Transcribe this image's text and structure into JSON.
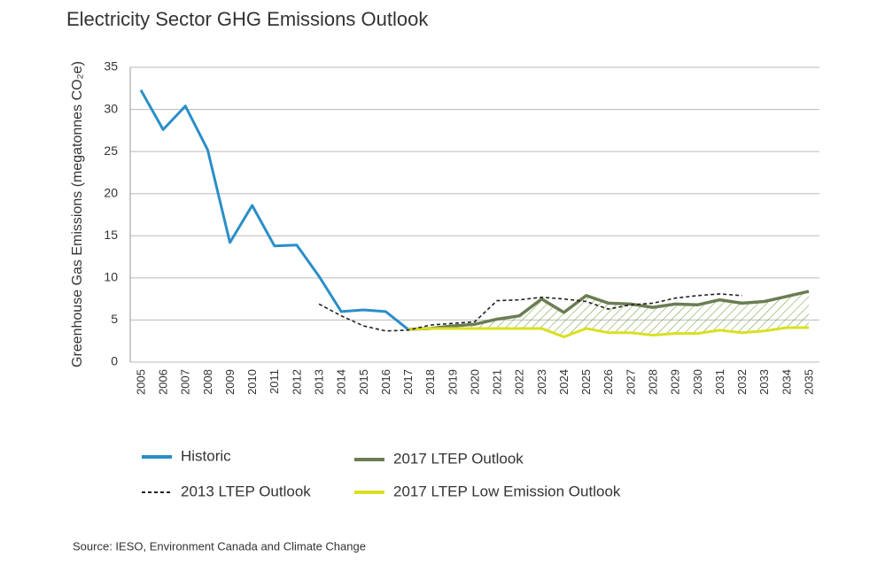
{
  "chart_data": {
    "type": "line",
    "title": "Electricity Sector GHG Emissions Outlook",
    "y_label": "Greenhouse Gas Emissions (megatonnes CO₂e)",
    "source": "Source: IESO, Environment Canada and Climate Change",
    "categories": [
      "2005",
      "2006",
      "2007",
      "2008",
      "2009",
      "2010",
      "2011",
      "2012",
      "2013",
      "2014",
      "2015",
      "2016",
      "2017",
      "2018",
      "2019",
      "2020",
      "2021",
      "2022",
      "2023",
      "2024",
      "2025",
      "2026",
      "2027",
      "2028",
      "2029",
      "2030",
      "2031",
      "2032",
      "2033",
      "2034",
      "2035"
    ],
    "ylim": [
      0,
      35
    ],
    "yticks": [
      0,
      5,
      10,
      15,
      20,
      25,
      30,
      35
    ],
    "grid": true,
    "series": [
      {
        "name": "Historic",
        "color": "#2a8ec9",
        "dashed": false,
        "values": [
          32.3,
          27.6,
          30.4,
          25.2,
          14.2,
          18.6,
          13.8,
          13.9,
          10.2,
          6.0,
          6.2,
          6.0,
          3.9,
          null,
          null,
          null,
          null,
          null,
          null,
          null,
          null,
          null,
          null,
          null,
          null,
          null,
          null,
          null,
          null,
          null,
          null
        ]
      },
      {
        "name": "2013 LTEP Outlook",
        "color": "#222222",
        "dashed": true,
        "values": [
          null,
          null,
          null,
          null,
          null,
          null,
          null,
          null,
          6.9,
          5.5,
          4.3,
          3.7,
          3.8,
          4.4,
          4.6,
          4.8,
          7.3,
          7.4,
          7.7,
          7.5,
          7.2,
          6.3,
          6.8,
          7.0,
          7.6,
          7.9,
          8.1,
          7.9,
          null,
          null,
          null
        ]
      },
      {
        "name": "2017 LTEP Outlook",
        "color": "#6b7d53",
        "dashed": false,
        "values": [
          null,
          null,
          null,
          null,
          null,
          null,
          null,
          null,
          null,
          null,
          null,
          null,
          3.9,
          4.0,
          4.3,
          4.5,
          5.1,
          5.5,
          7.5,
          5.9,
          7.9,
          7.0,
          6.9,
          6.5,
          6.9,
          6.8,
          7.4,
          7.0,
          7.2,
          7.8,
          8.4
        ]
      },
      {
        "name": "2017 LTEP Low Emission Outlook",
        "color": "#d9e021",
        "dashed": false,
        "values": [
          null,
          null,
          null,
          null,
          null,
          null,
          null,
          null,
          null,
          null,
          null,
          null,
          3.9,
          4.0,
          4.0,
          4.0,
          4.0,
          4.0,
          4.0,
          3.0,
          4.0,
          3.5,
          3.5,
          3.2,
          3.4,
          3.4,
          3.8,
          3.5,
          3.7,
          4.1,
          4.1
        ]
      }
    ]
  }
}
